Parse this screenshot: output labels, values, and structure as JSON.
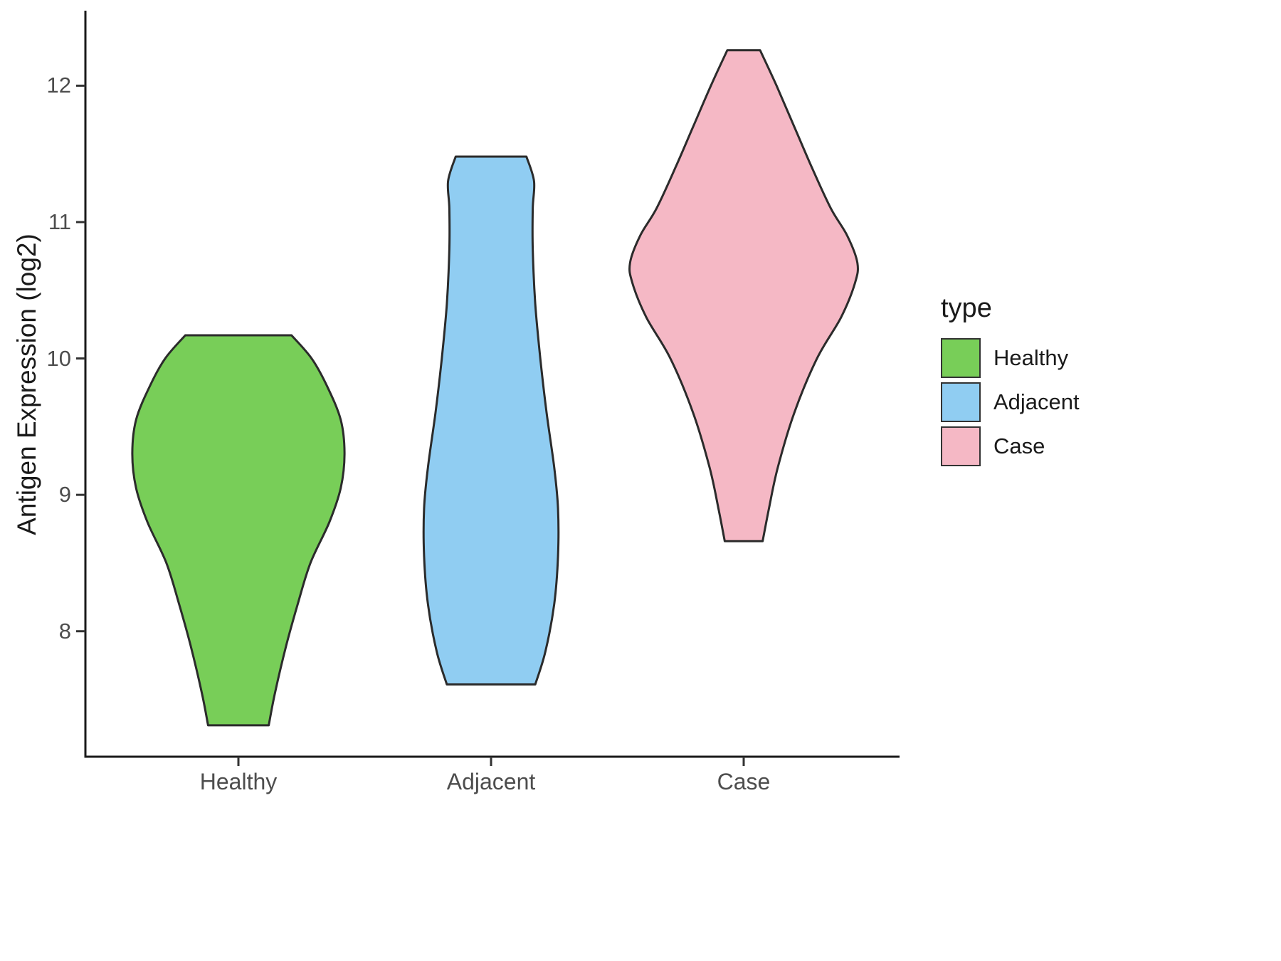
{
  "chart_data": {
    "type": "violin",
    "title": "",
    "xlabel": "",
    "ylabel": "Antigen Expression (log2)",
    "categories": [
      "Healthy",
      "Adjacent",
      "Case"
    ],
    "y_ticks": [
      8,
      9,
      10,
      11,
      12
    ],
    "ylim": [
      7.08,
      12.55
    ],
    "grid": false,
    "legend": {
      "title": "type",
      "position": "right",
      "entries": [
        {
          "label": "Healthy",
          "color": "#78CE58"
        },
        {
          "label": "Adjacent",
          "color": "#90CDF2"
        },
        {
          "label": "Case",
          "color": "#F5B8C5"
        }
      ]
    },
    "stroke_color": "#2b2b2b",
    "stroke_width": 3,
    "series": [
      {
        "name": "Healthy",
        "fill": "#78CE58",
        "category_index": 0,
        "y_min": 7.31,
        "y_max": 10.17,
        "density_profile": [
          [
            7.31,
            0.12
          ],
          [
            7.55,
            0.145
          ],
          [
            7.9,
            0.19
          ],
          [
            8.2,
            0.235
          ],
          [
            8.5,
            0.285
          ],
          [
            8.8,
            0.36
          ],
          [
            9.05,
            0.405
          ],
          [
            9.3,
            0.42
          ],
          [
            9.55,
            0.405
          ],
          [
            9.8,
            0.35
          ],
          [
            10.0,
            0.29
          ],
          [
            10.17,
            0.21
          ]
        ]
      },
      {
        "name": "Adjacent",
        "fill": "#90CDF2",
        "category_index": 1,
        "y_min": 7.61,
        "y_max": 11.48,
        "density_profile": [
          [
            7.61,
            0.175
          ],
          [
            7.85,
            0.215
          ],
          [
            8.2,
            0.25
          ],
          [
            8.55,
            0.265
          ],
          [
            8.9,
            0.265
          ],
          [
            9.2,
            0.25
          ],
          [
            9.6,
            0.22
          ],
          [
            10.0,
            0.195
          ],
          [
            10.4,
            0.175
          ],
          [
            10.8,
            0.165
          ],
          [
            11.1,
            0.165
          ],
          [
            11.3,
            0.17
          ],
          [
            11.48,
            0.14
          ]
        ]
      },
      {
        "name": "Case",
        "fill": "#F5B8C5",
        "category_index": 2,
        "y_min": 8.66,
        "y_max": 12.26,
        "density_profile": [
          [
            8.66,
            0.075
          ],
          [
            8.9,
            0.1
          ],
          [
            9.2,
            0.135
          ],
          [
            9.6,
            0.2
          ],
          [
            10.0,
            0.29
          ],
          [
            10.3,
            0.385
          ],
          [
            10.55,
            0.44
          ],
          [
            10.7,
            0.45
          ],
          [
            10.9,
            0.41
          ],
          [
            11.1,
            0.345
          ],
          [
            11.4,
            0.27
          ],
          [
            11.7,
            0.2
          ],
          [
            12.0,
            0.13
          ],
          [
            12.26,
            0.065
          ]
        ]
      }
    ]
  }
}
